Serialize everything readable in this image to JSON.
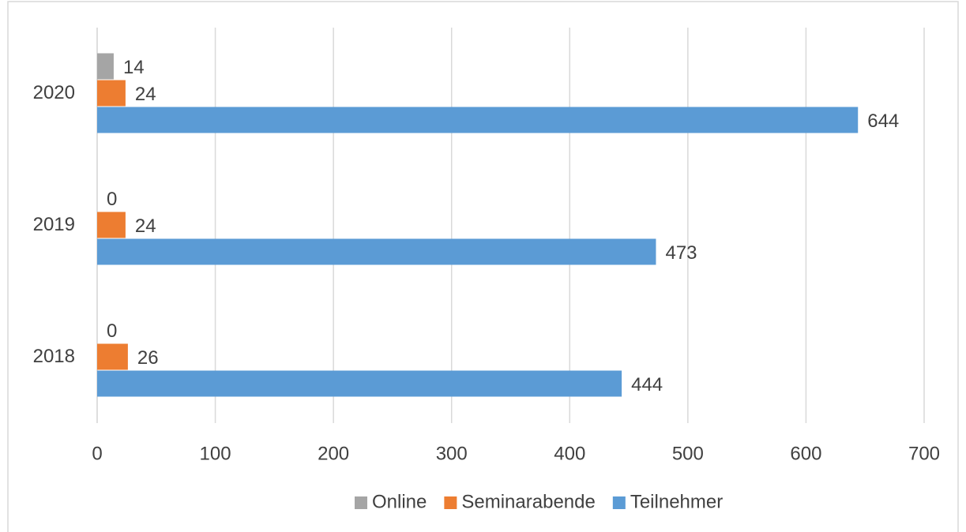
{
  "chart_data": {
    "type": "hbar",
    "categories": [
      "2018",
      "2019",
      "2020"
    ],
    "series": [
      {
        "name": "Online",
        "color": "#a5a5a5",
        "values": [
          0,
          0,
          14
        ]
      },
      {
        "name": "Seminarabende",
        "color": "#ed7d31",
        "values": [
          26,
          24,
          24
        ]
      },
      {
        "name": "Teilnehmer",
        "color": "#5b9bd5",
        "values": [
          444,
          473,
          644
        ]
      }
    ],
    "xlim": [
      0,
      700
    ],
    "xticks": [
      0,
      100,
      200,
      300,
      400,
      500,
      600,
      700
    ],
    "grid": true,
    "legend": "bottom"
  }
}
